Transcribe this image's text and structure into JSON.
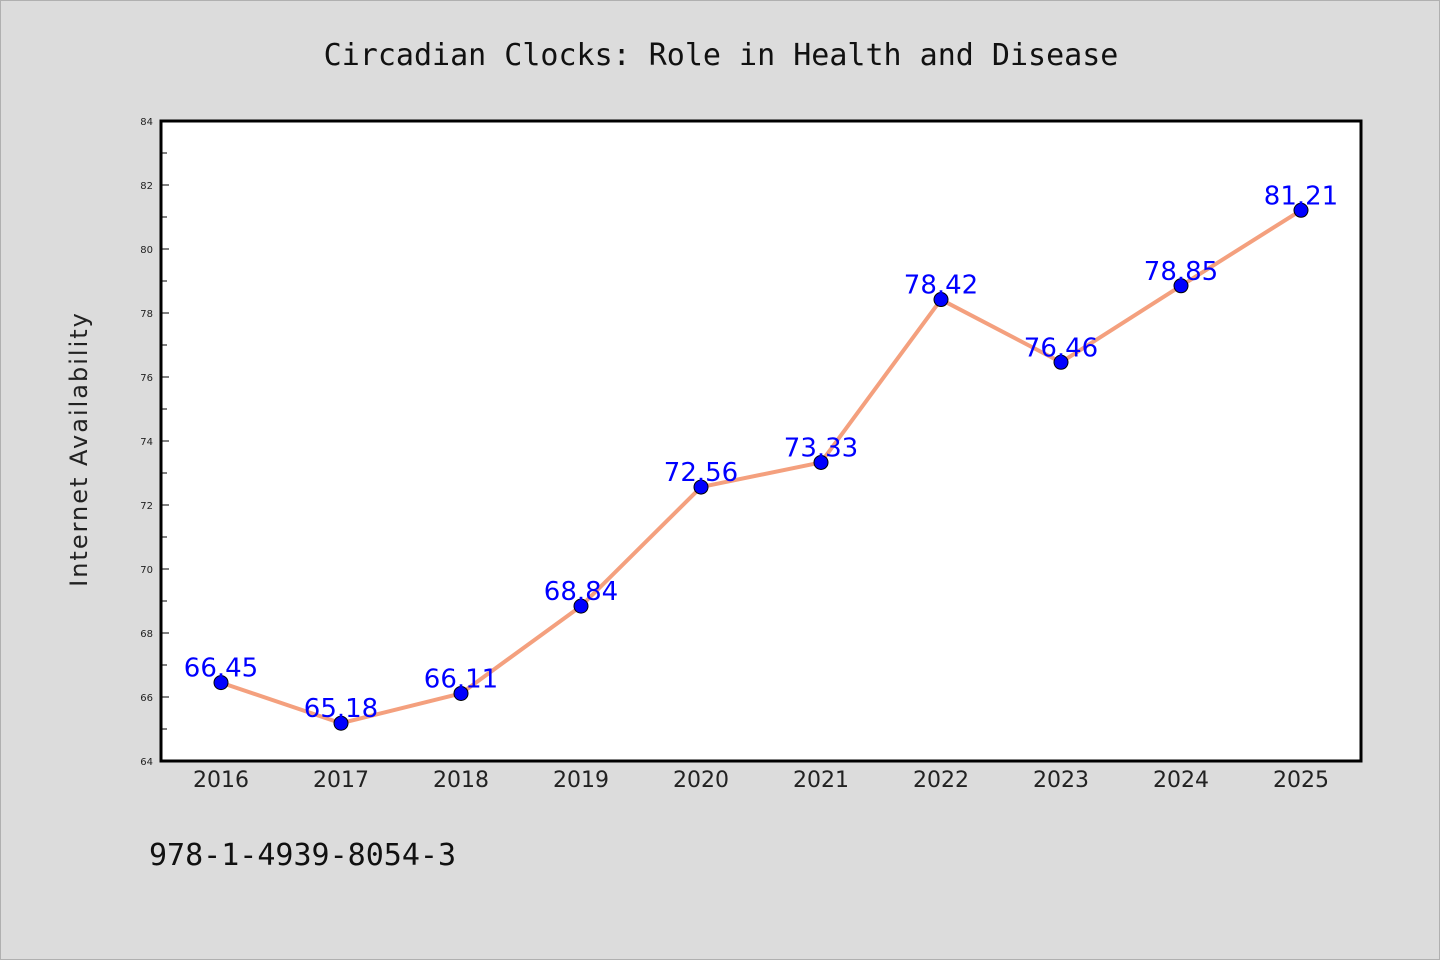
{
  "colors": {
    "background": "#dcdcdc",
    "plot_background": "#ffffff",
    "line": "#f4a07e",
    "marker": "#0000ff",
    "data_label": "#0000ff",
    "axis": "#000000"
  },
  "footnote": "978-1-4939-8054-3",
  "chart_data": {
    "type": "line",
    "title": "Circadian Clocks: Role in Health and Disease",
    "xlabel": "",
    "ylabel": "Internet Availability",
    "categories": [
      "2016",
      "2017",
      "2018",
      "2019",
      "2020",
      "2021",
      "2022",
      "2023",
      "2024",
      "2025"
    ],
    "series": [
      {
        "values": [
          66.45,
          65.18,
          66.11,
          68.84,
          72.56,
          73.33,
          78.42,
          76.46,
          78.85,
          81.21
        ],
        "labels": [
          "66.45",
          "65.18",
          "66.11",
          "68.84",
          "72.56",
          "73.33",
          "78.42",
          "76.46",
          "78.85",
          "81.21"
        ]
      }
    ],
    "ylim": [
      64,
      84
    ],
    "yticks": [
      "64",
      "66",
      "68",
      "70",
      "72",
      "74",
      "76",
      "78",
      "80",
      "82",
      "84"
    ],
    "grid": false,
    "legend": "none"
  }
}
